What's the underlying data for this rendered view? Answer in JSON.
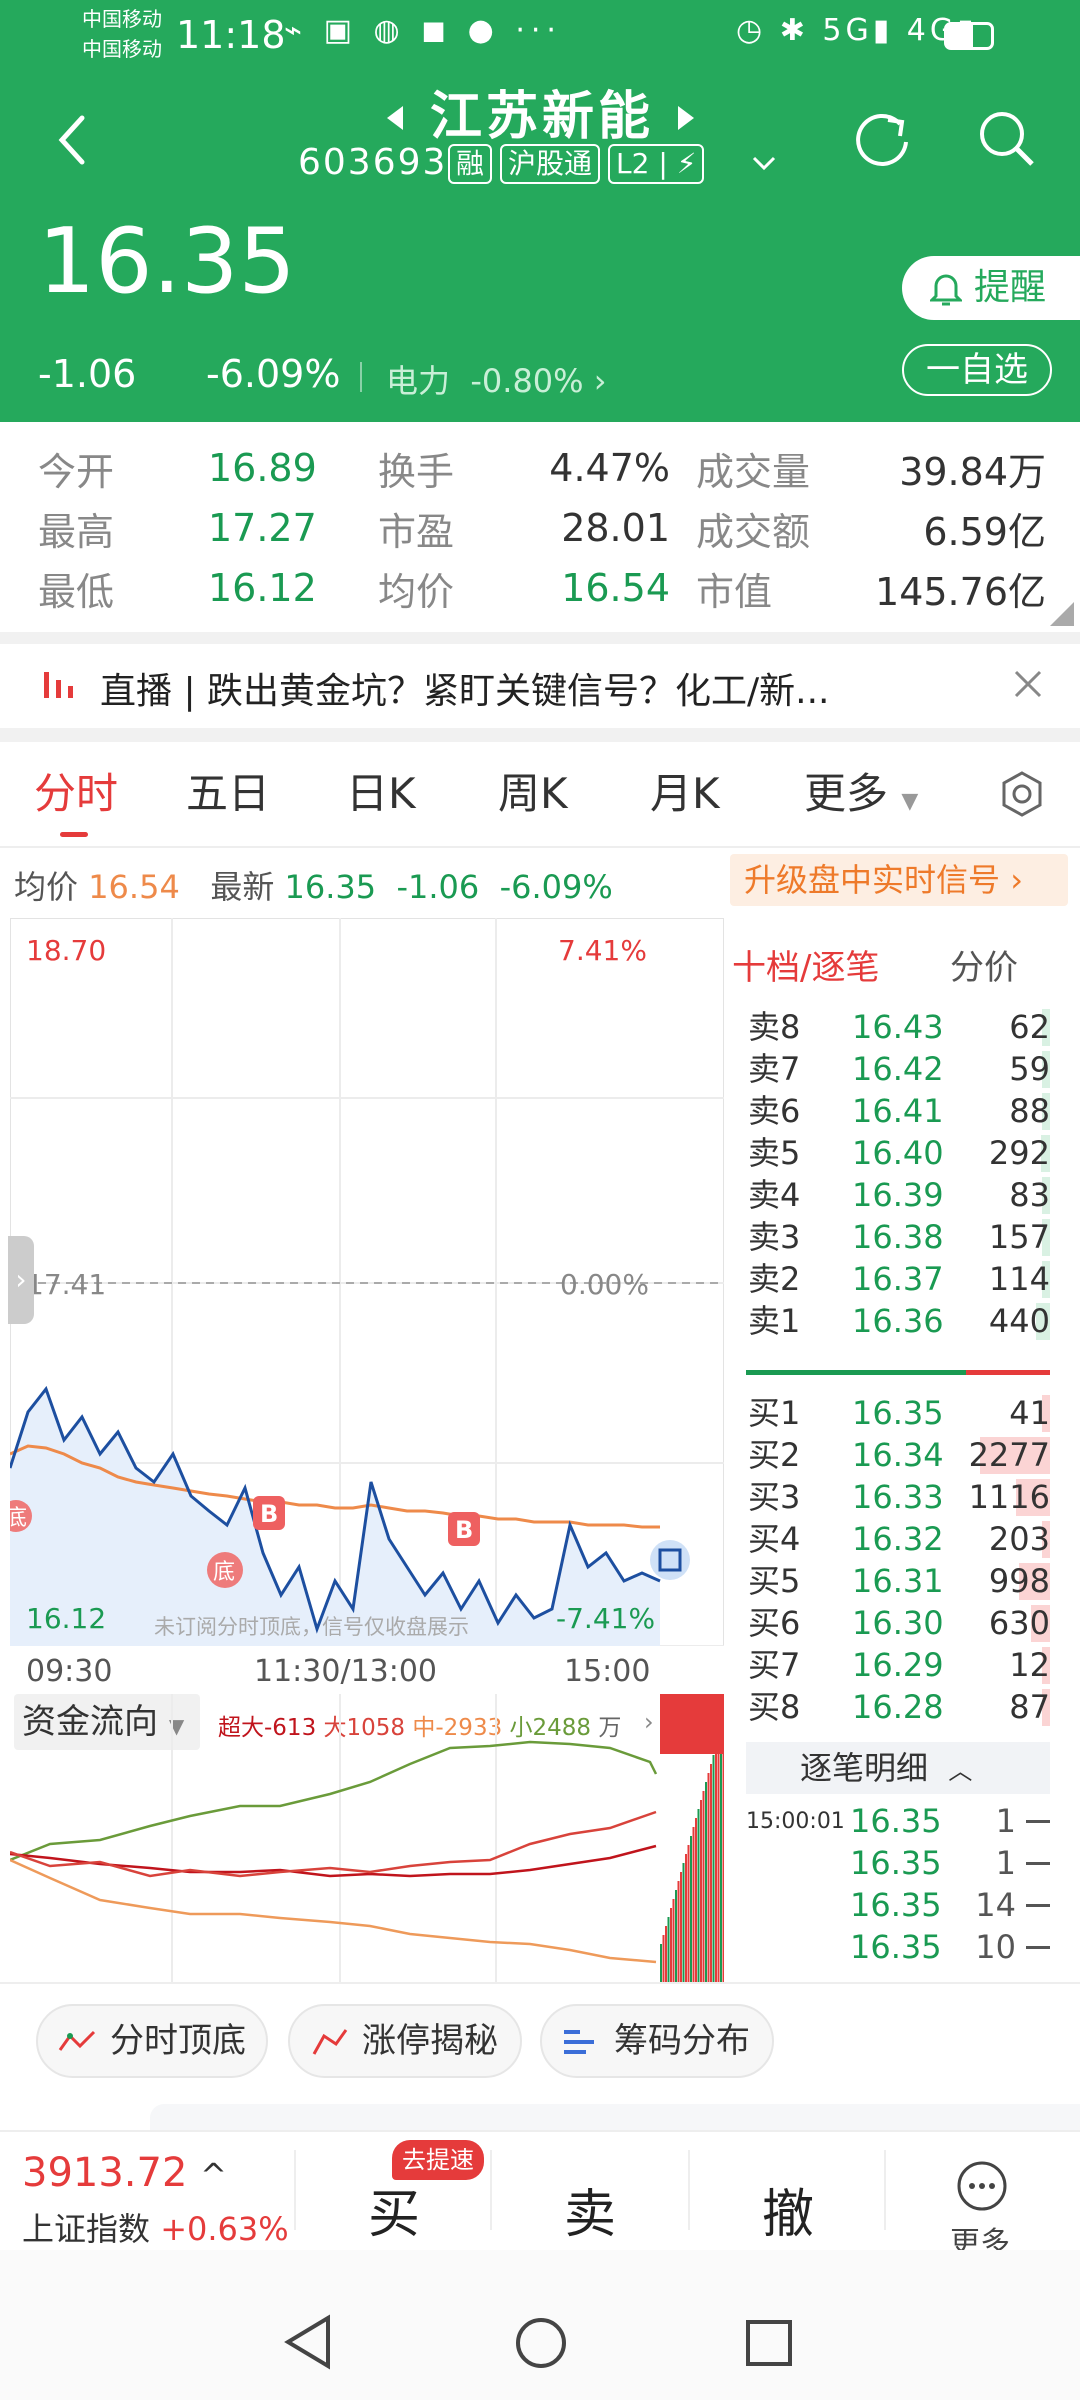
{
  "status": {
    "carrier1": "中国移动",
    "carrier2": "中国移动",
    "time": "11:18",
    "icons": "⌁ ▣ ◍ ◼ ● ···",
    "right": "◷ ✱ 5G▮ 4G▮"
  },
  "header": {
    "title": "江苏新能",
    "code": "603693",
    "tags": [
      "融",
      "沪股通",
      "L2"
    ],
    "price": "16.35",
    "change": "-1.06",
    "pct": "-6.09%",
    "sector": "电力",
    "sector_pct": "-0.80%",
    "remind": "提醒",
    "watch": "一自选"
  },
  "quote": {
    "rows": [
      [
        "今开",
        "16.89",
        "换手",
        "4.47%",
        "成交量",
        "39.84万"
      ],
      [
        "最高",
        "17.27",
        "市盈",
        "28.01",
        "成交额",
        "6.59亿"
      ],
      [
        "最低",
        "16.12",
        "均价",
        "16.54",
        "市值",
        "145.76亿"
      ]
    ]
  },
  "news": {
    "text": "直播 | 跌出黄金坑？紧盯关键信号？化工/新..."
  },
  "tabs": [
    "分时",
    "五日",
    "日K",
    "周K",
    "月K",
    "更多"
  ],
  "info": {
    "avg_label": "均价",
    "avg": "16.54",
    "latest_label": "最新",
    "latest": "16.35",
    "chg": "-1.06",
    "pct": "-6.09%",
    "upgrade": "升级盘中实时信号"
  },
  "chart": {
    "ymax": "18.70",
    "ymax_pct": "7.41%",
    "ymid": "17.41",
    "ymid_pct": "0.00%",
    "ymin": "16.12",
    "ymin_pct": "-7.41%",
    "t0": "09:30",
    "t1": "11:30/13:00",
    "t2": "15:00",
    "watermark": "未订阅分时顶底，信号仅收盘展示",
    "bottom_mark": "底",
    "buy_mark": "B"
  },
  "chart_data": {
    "type": "line",
    "x_range": [
      "09:30",
      "15:00"
    ],
    "ylim": [
      16.12,
      18.7
    ],
    "series": [
      {
        "name": "价格",
        "values": [
          16.75,
          16.95,
          17.03,
          16.85,
          16.93,
          16.8,
          16.88,
          16.75,
          16.7,
          16.8,
          16.65,
          16.6,
          16.55,
          16.68,
          16.45,
          16.3,
          16.4,
          16.18,
          16.35,
          16.25,
          16.7,
          16.5,
          16.4,
          16.3,
          16.38,
          16.25,
          16.35,
          16.2,
          16.3,
          16.22,
          16.25,
          16.55,
          16.4,
          16.45,
          16.35,
          16.38,
          16.35
        ]
      },
      {
        "name": "均价",
        "values": [
          16.8,
          16.83,
          16.82,
          16.8,
          16.77,
          16.75,
          16.72,
          16.7,
          16.69,
          16.68,
          16.67,
          16.66,
          16.65,
          16.64,
          16.63,
          16.63,
          16.62,
          16.62,
          16.61,
          16.61,
          16.62,
          16.61,
          16.6,
          16.6,
          16.59,
          16.58,
          16.58,
          16.57,
          16.57,
          16.56,
          16.56,
          16.56,
          16.55,
          16.55,
          16.55,
          16.54,
          16.54
        ]
      }
    ]
  },
  "orderbook": {
    "title": "十档/逐笔",
    "alt": "分价",
    "asks": [
      [
        "卖8",
        "16.43",
        "62"
      ],
      [
        "卖7",
        "16.42",
        "59"
      ],
      [
        "卖6",
        "16.41",
        "88"
      ],
      [
        "卖5",
        "16.40",
        "292"
      ],
      [
        "卖4",
        "16.39",
        "83"
      ],
      [
        "卖3",
        "16.38",
        "157"
      ],
      [
        "卖2",
        "16.37",
        "114"
      ],
      [
        "卖1",
        "16.36",
        "440"
      ]
    ],
    "bids": [
      [
        "买1",
        "16.35",
        "41"
      ],
      [
        "买2",
        "16.34",
        "2277"
      ],
      [
        "买3",
        "16.33",
        "1116"
      ],
      [
        "买4",
        "16.32",
        "203"
      ],
      [
        "买5",
        "16.31",
        "998"
      ],
      [
        "买6",
        "16.30",
        "630"
      ],
      [
        "买7",
        "16.29",
        "12"
      ],
      [
        "买8",
        "16.28",
        "87"
      ]
    ],
    "ticks_title": "逐笔明细",
    "ticks": [
      [
        "15:00:01",
        "16.35",
        "1"
      ],
      [
        "",
        "16.35",
        "1"
      ],
      [
        "",
        "16.35",
        "14"
      ],
      [
        "",
        "16.35",
        "10"
      ]
    ]
  },
  "flow": {
    "title": "资金流向",
    "super": "超大-613",
    "big": "大1058",
    "mid": "中-2933",
    "small": "小2488",
    "unit": "万"
  },
  "buttons": [
    "分时顶底",
    "涨停揭秘",
    "筹码分布"
  ],
  "bottom": {
    "index_val": "3913.72",
    "index_name": "上证指数",
    "index_pct": "+0.63%",
    "buy": "买",
    "buy_badge": "去提速",
    "sell": "卖",
    "cancel": "撤",
    "more": "更多"
  },
  "colors": {
    "green": "#25a95c",
    "red": "#e53b3b",
    "price_line": "#1d4fa0",
    "avg_line": "#ee8a4a"
  }
}
